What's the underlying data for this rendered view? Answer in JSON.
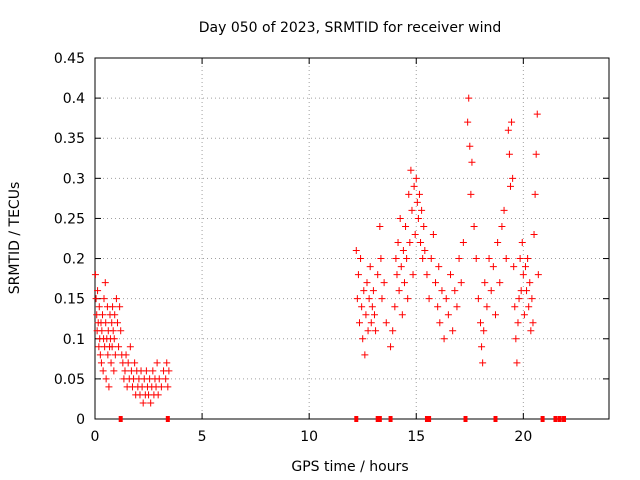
{
  "chart_data": {
    "type": "scatter",
    "title": "Day 050 of 2023, SRMTID for receiver wind",
    "xlabel": "GPS time / hours",
    "ylabel": "SRMTID / TECUs",
    "xlim": [
      0,
      24
    ],
    "ylim": [
      0,
      0.45
    ],
    "x_ticks": [
      0,
      5,
      10,
      15,
      20
    ],
    "y_ticks": [
      0,
      0.05,
      0.1,
      0.15,
      0.2,
      0.25,
      0.3,
      0.35,
      0.4,
      0.45
    ],
    "x_tick_labels": [
      "0",
      "5",
      "10",
      "15",
      "20"
    ],
    "y_tick_labels": [
      "0",
      "0.05",
      "0.1",
      "0.15",
      "0.2",
      "0.25",
      "0.3",
      "0.35",
      "0.4",
      "0.45"
    ],
    "grid": true,
    "color": "#ff0000",
    "marker": "plus",
    "series": [
      {
        "name": "SRMTID",
        "points": [
          [
            0.02,
            0.18
          ],
          [
            0.05,
            0.15
          ],
          [
            0.08,
            0.13
          ],
          [
            0.1,
            0.11
          ],
          [
            0.12,
            0.16
          ],
          [
            0.15,
            0.12
          ],
          [
            0.18,
            0.09
          ],
          [
            0.2,
            0.14
          ],
          [
            0.22,
            0.1
          ],
          [
            0.25,
            0.08
          ],
          [
            0.28,
            0.12
          ],
          [
            0.3,
            0.07
          ],
          [
            0.32,
            0.11
          ],
          [
            0.35,
            0.13
          ],
          [
            0.38,
            0.06
          ],
          [
            0.4,
            0.1
          ],
          [
            0.42,
            0.15
          ],
          [
            0.45,
            0.09
          ],
          [
            0.48,
            0.17
          ],
          [
            0.5,
            0.12
          ],
          [
            0.52,
            0.05
          ],
          [
            0.55,
            0.1
          ],
          [
            0.58,
            0.14
          ],
          [
            0.6,
            0.08
          ],
          [
            0.62,
            0.11
          ],
          [
            0.65,
            0.04
          ],
          [
            0.68,
            0.09
          ],
          [
            0.7,
            0.13
          ],
          [
            0.72,
            0.1
          ],
          [
            0.75,
            0.07
          ],
          [
            0.78,
            0.12
          ],
          [
            0.8,
            0.09
          ],
          [
            0.82,
            0.14
          ],
          [
            0.85,
            0.11
          ],
          [
            0.88,
            0.06
          ],
          [
            0.9,
            0.1
          ],
          [
            0.92,
            0.13
          ],
          [
            0.95,
            0.08
          ],
          [
            1.0,
            0.15
          ],
          [
            1.05,
            0.12
          ],
          [
            1.1,
            0.09
          ],
          [
            1.15,
            0.14
          ],
          [
            1.2,
            0.11
          ],
          [
            1.25,
            0.08
          ],
          [
            1.3,
            0.07
          ],
          [
            1.35,
            0.05
          ],
          [
            1.4,
            0.06
          ],
          [
            1.45,
            0.08
          ],
          [
            1.5,
            0.04
          ],
          [
            1.55,
            0.07
          ],
          [
            1.6,
            0.05
          ],
          [
            1.65,
            0.09
          ],
          [
            1.7,
            0.06
          ],
          [
            1.75,
            0.04
          ],
          [
            1.8,
            0.05
          ],
          [
            1.85,
            0.07
          ],
          [
            1.9,
            0.03
          ],
          [
            1.95,
            0.06
          ],
          [
            2.0,
            0.04
          ],
          [
            2.05,
            0.05
          ],
          [
            2.1,
            0.03
          ],
          [
            2.15,
            0.06
          ],
          [
            2.2,
            0.04
          ],
          [
            2.25,
            0.02
          ],
          [
            2.3,
            0.05
          ],
          [
            2.35,
            0.03
          ],
          [
            2.4,
            0.06
          ],
          [
            2.45,
            0.04
          ],
          [
            2.5,
            0.03
          ],
          [
            2.55,
            0.05
          ],
          [
            2.6,
            0.02
          ],
          [
            2.65,
            0.04
          ],
          [
            2.7,
            0.06
          ],
          [
            2.75,
            0.03
          ],
          [
            2.8,
            0.05
          ],
          [
            2.85,
            0.04
          ],
          [
            2.9,
            0.07
          ],
          [
            2.95,
            0.03
          ],
          [
            3.0,
            0.05
          ],
          [
            3.1,
            0.04
          ],
          [
            3.2,
            0.06
          ],
          [
            3.3,
            0.05
          ],
          [
            3.35,
            0.07
          ],
          [
            3.4,
            0.04
          ],
          [
            3.45,
            0.06
          ],
          [
            12.2,
            0.21
          ],
          [
            12.25,
            0.15
          ],
          [
            12.3,
            0.18
          ],
          [
            12.35,
            0.12
          ],
          [
            12.4,
            0.2
          ],
          [
            12.45,
            0.14
          ],
          [
            12.5,
            0.1
          ],
          [
            12.55,
            0.16
          ],
          [
            12.6,
            0.08
          ],
          [
            12.65,
            0.13
          ],
          [
            12.7,
            0.17
          ],
          [
            12.75,
            0.11
          ],
          [
            12.8,
            0.15
          ],
          [
            12.85,
            0.19
          ],
          [
            12.9,
            0.12
          ],
          [
            12.95,
            0.14
          ],
          [
            13.0,
            0.16
          ],
          [
            13.05,
            0.13
          ],
          [
            13.1,
            0.11
          ],
          [
            13.2,
            0.18
          ],
          [
            13.3,
            0.24
          ],
          [
            13.35,
            0.2
          ],
          [
            13.4,
            0.15
          ],
          [
            13.5,
            0.17
          ],
          [
            13.6,
            0.12
          ],
          [
            13.8,
            0.09
          ],
          [
            13.9,
            0.11
          ],
          [
            14.0,
            0.14
          ],
          [
            14.05,
            0.2
          ],
          [
            14.1,
            0.18
          ],
          [
            14.15,
            0.22
          ],
          [
            14.2,
            0.16
          ],
          [
            14.25,
            0.25
          ],
          [
            14.3,
            0.19
          ],
          [
            14.35,
            0.13
          ],
          [
            14.4,
            0.21
          ],
          [
            14.45,
            0.17
          ],
          [
            14.5,
            0.24
          ],
          [
            14.55,
            0.2
          ],
          [
            14.6,
            0.15
          ],
          [
            14.65,
            0.28
          ],
          [
            14.7,
            0.22
          ],
          [
            14.75,
            0.31
          ],
          [
            14.8,
            0.26
          ],
          [
            14.85,
            0.18
          ],
          [
            14.9,
            0.29
          ],
          [
            14.95,
            0.23
          ],
          [
            15.0,
            0.3
          ],
          [
            15.05,
            0.27
          ],
          [
            15.1,
            0.25
          ],
          [
            15.15,
            0.28
          ],
          [
            15.2,
            0.22
          ],
          [
            15.25,
            0.26
          ],
          [
            15.3,
            0.2
          ],
          [
            15.35,
            0.24
          ],
          [
            15.4,
            0.21
          ],
          [
            15.5,
            0.18
          ],
          [
            15.6,
            0.15
          ],
          [
            15.7,
            0.2
          ],
          [
            15.8,
            0.23
          ],
          [
            15.9,
            0.17
          ],
          [
            16.0,
            0.14
          ],
          [
            16.05,
            0.19
          ],
          [
            16.1,
            0.12
          ],
          [
            16.2,
            0.16
          ],
          [
            16.3,
            0.1
          ],
          [
            16.4,
            0.15
          ],
          [
            16.5,
            0.13
          ],
          [
            16.6,
            0.18
          ],
          [
            16.7,
            0.11
          ],
          [
            16.8,
            0.16
          ],
          [
            16.9,
            0.14
          ],
          [
            17.0,
            0.2
          ],
          [
            17.1,
            0.17
          ],
          [
            17.2,
            0.22
          ],
          [
            17.4,
            0.37
          ],
          [
            17.45,
            0.4
          ],
          [
            17.5,
            0.34
          ],
          [
            17.55,
            0.28
          ],
          [
            17.6,
            0.32
          ],
          [
            17.7,
            0.24
          ],
          [
            17.8,
            0.2
          ],
          [
            17.9,
            0.15
          ],
          [
            18.0,
            0.12
          ],
          [
            18.05,
            0.09
          ],
          [
            18.1,
            0.07
          ],
          [
            18.15,
            0.11
          ],
          [
            18.2,
            0.17
          ],
          [
            18.3,
            0.14
          ],
          [
            18.4,
            0.2
          ],
          [
            18.5,
            0.16
          ],
          [
            18.6,
            0.19
          ],
          [
            18.7,
            0.13
          ],
          [
            18.8,
            0.22
          ],
          [
            18.9,
            0.17
          ],
          [
            19.0,
            0.24
          ],
          [
            19.1,
            0.26
          ],
          [
            19.2,
            0.2
          ],
          [
            19.3,
            0.36
          ],
          [
            19.35,
            0.33
          ],
          [
            19.4,
            0.29
          ],
          [
            19.45,
            0.37
          ],
          [
            19.5,
            0.3
          ],
          [
            19.55,
            0.19
          ],
          [
            19.6,
            0.14
          ],
          [
            19.65,
            0.1
          ],
          [
            19.7,
            0.07
          ],
          [
            19.75,
            0.12
          ],
          [
            19.8,
            0.15
          ],
          [
            19.85,
            0.2
          ],
          [
            19.9,
            0.16
          ],
          [
            19.95,
            0.22
          ],
          [
            20.0,
            0.18
          ],
          [
            20.05,
            0.13
          ],
          [
            20.1,
            0.19
          ],
          [
            20.15,
            0.16
          ],
          [
            20.2,
            0.2
          ],
          [
            20.25,
            0.14
          ],
          [
            20.3,
            0.17
          ],
          [
            20.35,
            0.11
          ],
          [
            20.4,
            0.15
          ],
          [
            20.45,
            0.12
          ],
          [
            20.5,
            0.23
          ],
          [
            20.55,
            0.28
          ],
          [
            20.6,
            0.33
          ],
          [
            20.65,
            0.38
          ],
          [
            20.7,
            0.18
          ]
        ]
      }
    ],
    "baseline_markers": [
      1.2,
      3.4,
      12.2,
      13.2,
      13.3,
      13.8,
      15.5,
      15.6,
      17.3,
      18.7,
      20.9,
      21.5,
      21.7,
      21.9
    ]
  }
}
